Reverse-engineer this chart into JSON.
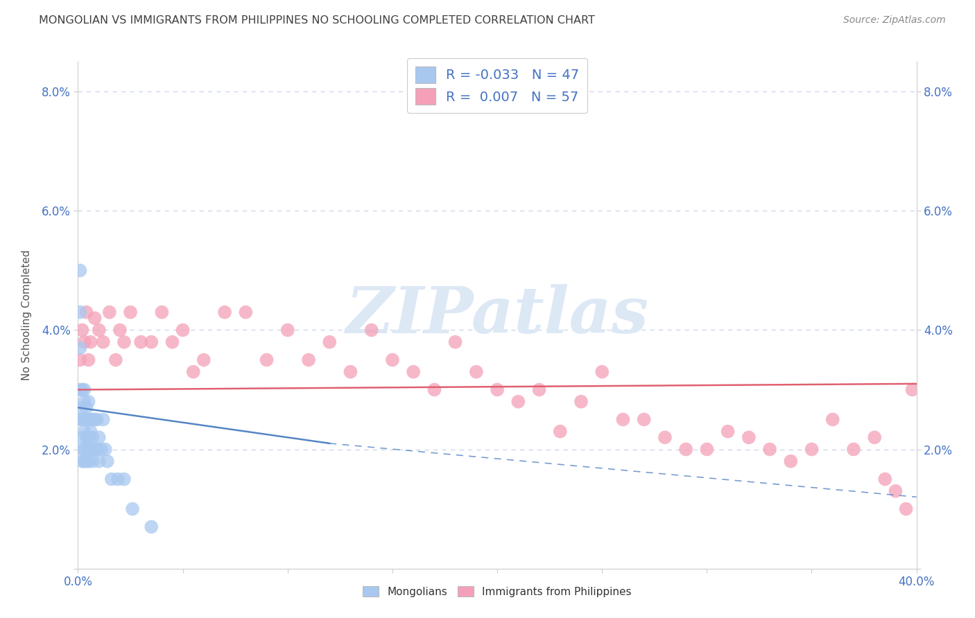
{
  "title": "MONGOLIAN VS IMMIGRANTS FROM PHILIPPINES NO SCHOOLING COMPLETED CORRELATION CHART",
  "source": "Source: ZipAtlas.com",
  "ylabel": "No Schooling Completed",
  "xlim": [
    0.0,
    0.4
  ],
  "ylim": [
    0.0,
    0.085
  ],
  "xticks": [
    0.0,
    0.05,
    0.1,
    0.15,
    0.2,
    0.25,
    0.3,
    0.35,
    0.4
  ],
  "yticks": [
    0.0,
    0.02,
    0.04,
    0.06,
    0.08
  ],
  "mongolian_R": "-0.033",
  "mongolian_N": "47",
  "philippines_R": "0.007",
  "philippines_N": "57",
  "mongolian_color": "#a8c8f0",
  "philippines_color": "#f4a0b8",
  "mongolian_line_color": "#5585c5",
  "philippines_line_color": "#e06070",
  "background_color": "#ffffff",
  "grid_color": "#c8d4e8",
  "watermark_text": "ZIPatlas",
  "watermark_color": "#dde8f5",
  "legend_text_color": "#4472c4",
  "title_color": "#404040",
  "source_color": "#888888",
  "axis_tick_color": "#4472c4",
  "ylabel_color": "#555555",
  "mongolian_x": [
    0.001,
    0.001,
    0.001,
    0.001,
    0.001,
    0.002,
    0.002,
    0.002,
    0.002,
    0.002,
    0.002,
    0.003,
    0.003,
    0.003,
    0.003,
    0.003,
    0.003,
    0.004,
    0.004,
    0.004,
    0.004,
    0.005,
    0.005,
    0.005,
    0.005,
    0.005,
    0.006,
    0.006,
    0.006,
    0.007,
    0.007,
    0.007,
    0.008,
    0.008,
    0.009,
    0.009,
    0.01,
    0.01,
    0.011,
    0.012,
    0.013,
    0.014,
    0.016,
    0.019,
    0.022,
    0.026,
    0.035
  ],
  "mongolian_y": [
    0.05,
    0.043,
    0.037,
    0.03,
    0.025,
    0.03,
    0.027,
    0.025,
    0.022,
    0.02,
    0.018,
    0.03,
    0.028,
    0.025,
    0.023,
    0.02,
    0.018,
    0.027,
    0.025,
    0.022,
    0.018,
    0.028,
    0.025,
    0.022,
    0.02,
    0.018,
    0.025,
    0.023,
    0.02,
    0.025,
    0.022,
    0.018,
    0.025,
    0.02,
    0.025,
    0.02,
    0.022,
    0.018,
    0.02,
    0.025,
    0.02,
    0.018,
    0.015,
    0.015,
    0.015,
    0.01,
    0.007
  ],
  "philippines_x": [
    0.001,
    0.002,
    0.003,
    0.004,
    0.005,
    0.006,
    0.008,
    0.01,
    0.012,
    0.015,
    0.018,
    0.02,
    0.022,
    0.025,
    0.03,
    0.035,
    0.04,
    0.045,
    0.05,
    0.055,
    0.06,
    0.07,
    0.08,
    0.09,
    0.1,
    0.11,
    0.12,
    0.13,
    0.14,
    0.15,
    0.16,
    0.17,
    0.18,
    0.19,
    0.2,
    0.21,
    0.22,
    0.23,
    0.24,
    0.25,
    0.26,
    0.27,
    0.28,
    0.29,
    0.3,
    0.31,
    0.32,
    0.33,
    0.34,
    0.35,
    0.36,
    0.37,
    0.38,
    0.385,
    0.39,
    0.395,
    0.398
  ],
  "philippines_y": [
    0.035,
    0.04,
    0.038,
    0.043,
    0.035,
    0.038,
    0.042,
    0.04,
    0.038,
    0.043,
    0.035,
    0.04,
    0.038,
    0.043,
    0.038,
    0.038,
    0.043,
    0.038,
    0.04,
    0.033,
    0.035,
    0.043,
    0.043,
    0.035,
    0.04,
    0.035,
    0.038,
    0.033,
    0.04,
    0.035,
    0.033,
    0.03,
    0.038,
    0.033,
    0.03,
    0.028,
    0.03,
    0.023,
    0.028,
    0.033,
    0.025,
    0.025,
    0.022,
    0.02,
    0.02,
    0.023,
    0.022,
    0.02,
    0.018,
    0.02,
    0.025,
    0.02,
    0.022,
    0.015,
    0.013,
    0.01,
    0.03
  ],
  "mongo_line_start_x": 0.0,
  "mongo_line_start_y": 0.027,
  "mongo_line_solid_end_x": 0.12,
  "mongo_line_solid_end_y": 0.021,
  "mongo_line_dash_end_x": 0.4,
  "mongo_line_dash_end_y": 0.012,
  "phil_line_start_x": 0.0,
  "phil_line_start_y": 0.03,
  "phil_line_end_x": 0.4,
  "phil_line_end_y": 0.031
}
